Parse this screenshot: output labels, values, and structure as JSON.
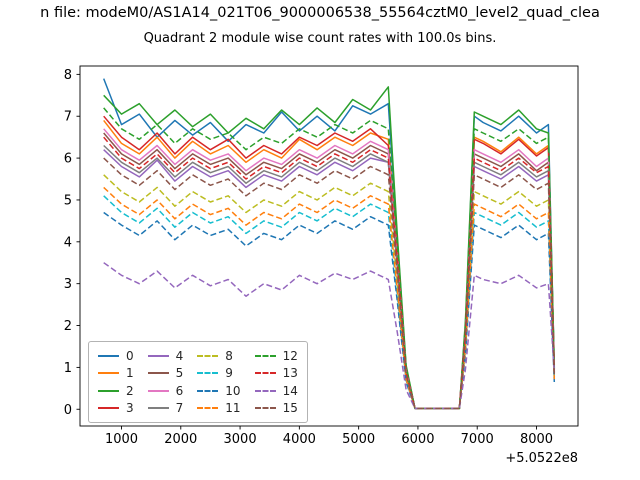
{
  "figure": {
    "title_line1": "n file: modeM0/AS1A14_021T06_9000006538_55564cztM0_level2_quad_clea",
    "title_line2": "Quadrant 2 module wise count rates with 100.0s bins."
  },
  "chart_data": {
    "type": "line",
    "title": "Quadrant 2 module wise count rates with 100.0s bins.",
    "xlabel": "",
    "ylabel": "",
    "x_offset_label": "+5.0522e8",
    "xlim": [
      300,
      8700
    ],
    "ylim": [
      -0.4,
      8.2
    ],
    "xticks": [
      1000,
      2000,
      3000,
      4000,
      5000,
      6000,
      7000,
      8000
    ],
    "yticks": [
      0,
      1,
      2,
      3,
      4,
      5,
      6,
      7,
      8
    ],
    "grid": false,
    "legend_position": "lower left",
    "x": [
      700,
      1000,
      1300,
      1600,
      1900,
      2200,
      2500,
      2800,
      3100,
      3400,
      3700,
      4000,
      4300,
      4600,
      4900,
      5200,
      5500,
      5650,
      5800,
      5950,
      6100,
      6400,
      6700,
      6800,
      6950,
      7100,
      7400,
      7700,
      8000,
      8200,
      8300
    ],
    "series": [
      {
        "name": "0",
        "color": "#1f77b4",
        "style": "solid",
        "values": [
          7.9,
          6.8,
          7.05,
          6.5,
          6.9,
          6.55,
          6.85,
          6.4,
          6.8,
          6.6,
          7.1,
          6.65,
          7.0,
          6.65,
          7.25,
          7.05,
          7.3,
          4.1,
          1.0,
          0.02,
          0.02,
          0.02,
          0.02,
          2.0,
          7.0,
          6.85,
          6.65,
          7.0,
          6.6,
          6.8,
          1.0
        ]
      },
      {
        "name": "1",
        "color": "#ff7f0e",
        "style": "solid",
        "values": [
          6.9,
          6.35,
          6.1,
          6.5,
          6.0,
          6.4,
          6.1,
          6.3,
          5.9,
          6.2,
          6.0,
          6.45,
          6.2,
          6.5,
          6.3,
          6.6,
          6.45,
          3.8,
          0.9,
          0.02,
          0.02,
          0.02,
          0.02,
          1.9,
          6.5,
          6.4,
          6.15,
          6.5,
          6.1,
          6.3,
          0.95
        ]
      },
      {
        "name": "2",
        "color": "#2ca02c",
        "style": "solid",
        "values": [
          7.5,
          7.05,
          7.3,
          6.8,
          7.15,
          6.75,
          7.05,
          6.6,
          6.95,
          6.7,
          7.15,
          6.8,
          7.2,
          6.85,
          7.4,
          7.15,
          7.7,
          4.2,
          1.05,
          0.02,
          0.02,
          0.02,
          0.02,
          2.1,
          7.1,
          7.0,
          6.8,
          7.15,
          6.7,
          6.6,
          1.05
        ]
      },
      {
        "name": "3",
        "color": "#d62728",
        "style": "solid",
        "values": [
          7.0,
          6.5,
          6.2,
          6.6,
          6.1,
          6.5,
          6.2,
          6.45,
          6.0,
          6.3,
          6.1,
          6.5,
          6.3,
          6.6,
          6.4,
          6.7,
          6.3,
          3.85,
          0.95,
          0.02,
          0.02,
          0.02,
          0.02,
          1.9,
          6.45,
          6.35,
          6.1,
          6.45,
          6.05,
          6.25,
          0.96
        ]
      },
      {
        "name": "4",
        "color": "#9467bd",
        "style": "solid",
        "values": [
          6.2,
          5.8,
          5.55,
          5.95,
          5.45,
          5.8,
          5.55,
          5.7,
          5.3,
          5.6,
          5.45,
          5.8,
          5.6,
          5.9,
          5.7,
          6.0,
          5.9,
          3.4,
          0.85,
          0.02,
          0.02,
          0.02,
          0.02,
          1.7,
          5.8,
          5.7,
          5.5,
          5.8,
          5.45,
          5.6,
          0.85
        ]
      },
      {
        "name": "5",
        "color": "#8c564b",
        "style": "solid",
        "values": [
          6.6,
          6.1,
          5.85,
          6.2,
          5.75,
          6.1,
          5.85,
          6.0,
          5.6,
          5.9,
          5.75,
          6.1,
          5.9,
          6.2,
          6.0,
          6.3,
          6.1,
          3.6,
          0.9,
          0.02,
          0.02,
          0.02,
          0.02,
          1.8,
          6.1,
          6.0,
          5.8,
          6.1,
          5.7,
          5.9,
          0.9
        ]
      },
      {
        "name": "6",
        "color": "#e377c2",
        "style": "solid",
        "values": [
          6.7,
          6.2,
          5.95,
          6.3,
          5.85,
          6.2,
          5.95,
          6.1,
          5.7,
          6.0,
          5.85,
          6.2,
          6.0,
          6.3,
          6.1,
          6.4,
          6.2,
          3.65,
          0.92,
          0.02,
          0.02,
          0.02,
          0.02,
          1.85,
          6.2,
          6.1,
          5.9,
          6.2,
          5.8,
          6.0,
          0.92
        ]
      },
      {
        "name": "7",
        "color": "#7f7f7f",
        "style": "solid",
        "values": [
          6.3,
          5.9,
          5.65,
          6.0,
          5.55,
          5.9,
          5.65,
          5.8,
          5.4,
          5.7,
          5.55,
          5.9,
          5.7,
          6.0,
          5.8,
          6.1,
          5.9,
          3.5,
          0.87,
          0.02,
          0.02,
          0.02,
          0.02,
          1.75,
          5.9,
          5.8,
          5.6,
          5.9,
          5.55,
          5.7,
          0.87
        ]
      },
      {
        "name": "8",
        "color": "#bcbd22",
        "style": "dashed",
        "values": [
          5.6,
          5.2,
          4.95,
          5.3,
          4.85,
          5.2,
          4.95,
          5.1,
          4.7,
          5.0,
          4.85,
          5.2,
          5.0,
          5.3,
          5.1,
          5.4,
          5.2,
          3.05,
          0.77,
          0.02,
          0.02,
          0.02,
          0.02,
          1.55,
          5.2,
          5.1,
          4.9,
          5.2,
          4.85,
          5.0,
          0.77
        ]
      },
      {
        "name": "9",
        "color": "#17becf",
        "style": "dashed",
        "values": [
          5.1,
          4.7,
          4.45,
          4.8,
          4.35,
          4.7,
          4.45,
          4.6,
          4.2,
          4.5,
          4.35,
          4.7,
          4.5,
          4.8,
          4.6,
          4.9,
          4.7,
          2.75,
          0.69,
          0.02,
          0.02,
          0.02,
          0.02,
          1.4,
          4.7,
          4.6,
          4.4,
          4.7,
          4.35,
          4.5,
          0.69
        ]
      },
      {
        "name": "10",
        "color": "#1f77b4",
        "style": "dashed",
        "values": [
          4.7,
          4.4,
          4.15,
          4.5,
          4.05,
          4.4,
          4.15,
          4.3,
          3.9,
          4.2,
          4.05,
          4.4,
          4.2,
          4.5,
          4.3,
          4.6,
          4.4,
          2.6,
          0.65,
          0.02,
          0.02,
          0.02,
          0.02,
          1.3,
          4.4,
          4.3,
          4.1,
          4.4,
          4.05,
          4.2,
          0.65
        ]
      },
      {
        "name": "11",
        "color": "#ff7f0e",
        "style": "dashed",
        "values": [
          5.3,
          4.9,
          4.65,
          5.0,
          4.55,
          4.9,
          4.65,
          4.8,
          4.4,
          4.7,
          4.55,
          4.9,
          4.7,
          5.0,
          4.8,
          5.1,
          4.9,
          2.9,
          0.72,
          0.02,
          0.02,
          0.02,
          0.02,
          1.45,
          4.9,
          4.8,
          4.6,
          4.9,
          4.55,
          4.7,
          0.72
        ]
      },
      {
        "name": "12",
        "color": "#2ca02c",
        "style": "dashed",
        "values": [
          7.2,
          6.7,
          6.45,
          6.8,
          6.35,
          6.7,
          6.45,
          6.6,
          6.2,
          6.5,
          6.35,
          6.7,
          6.5,
          6.8,
          6.6,
          6.9,
          6.7,
          3.95,
          0.99,
          0.02,
          0.02,
          0.02,
          0.02,
          2.0,
          6.7,
          6.6,
          6.4,
          6.7,
          6.35,
          6.5,
          0.99
        ]
      },
      {
        "name": "13",
        "color": "#d62728",
        "style": "dashed",
        "values": [
          6.5,
          6.0,
          5.75,
          6.1,
          5.65,
          6.0,
          5.75,
          5.9,
          5.5,
          5.8,
          5.65,
          6.0,
          5.8,
          6.1,
          5.9,
          6.2,
          6.0,
          3.55,
          0.88,
          0.02,
          0.02,
          0.02,
          0.02,
          1.8,
          6.0,
          5.9,
          5.7,
          6.0,
          5.65,
          5.8,
          0.88
        ]
      },
      {
        "name": "14",
        "color": "#9467bd",
        "style": "dashed",
        "values": [
          3.5,
          3.2,
          3.0,
          3.3,
          2.9,
          3.2,
          2.95,
          3.1,
          2.7,
          3.0,
          2.85,
          3.2,
          3.0,
          3.25,
          3.1,
          3.3,
          3.1,
          1.85,
          0.47,
          0.02,
          0.02,
          0.02,
          0.02,
          0.95,
          3.2,
          3.1,
          3.0,
          3.2,
          2.9,
          3.0,
          0.9
        ]
      },
      {
        "name": "15",
        "color": "#8c564b",
        "style": "dashed",
        "values": [
          6.0,
          5.6,
          5.35,
          5.7,
          5.25,
          5.6,
          5.35,
          5.5,
          5.1,
          5.4,
          5.25,
          5.6,
          5.4,
          5.7,
          5.5,
          5.8,
          5.6,
          3.3,
          0.82,
          0.02,
          0.02,
          0.02,
          0.02,
          1.65,
          5.6,
          5.5,
          5.3,
          5.6,
          5.25,
          5.4,
          0.82
        ]
      }
    ]
  }
}
